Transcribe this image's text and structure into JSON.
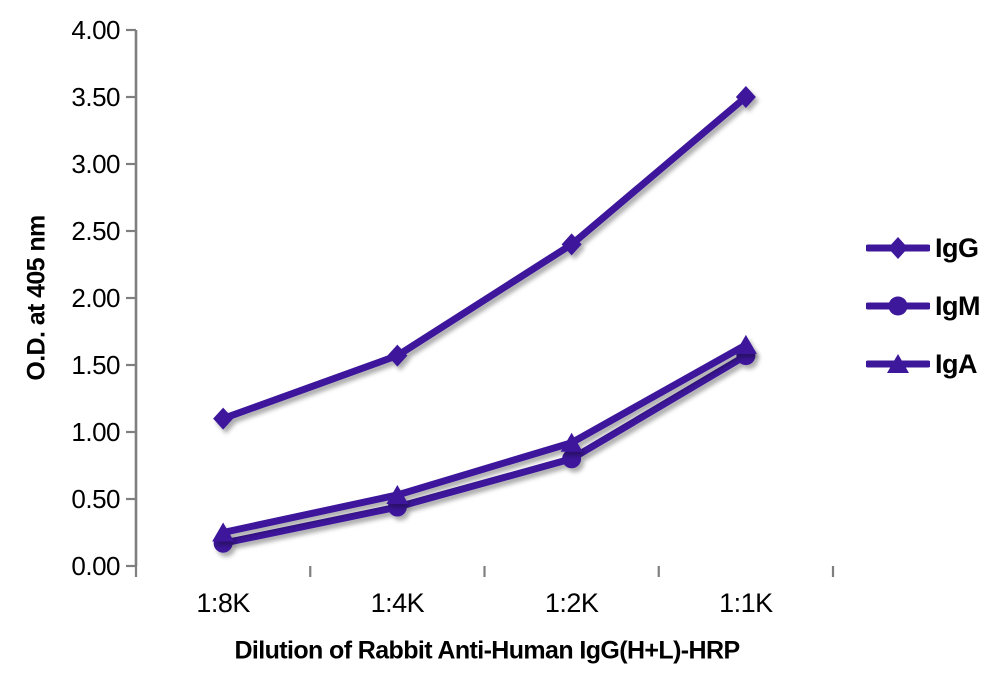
{
  "figure": {
    "background": "#ffffff"
  },
  "chart_data": {
    "type": "line",
    "title": "",
    "xlabel": "Dilution of Rabbit Anti-Human IgG(H+L)-HRP",
    "ylabel": "O.D. at 405 nm",
    "categories": [
      "1:8K",
      "1:4K",
      "1:2K",
      "1:1K"
    ],
    "series": [
      {
        "name": "IgG",
        "marker": "diamond",
        "values": [
          1.1,
          1.57,
          2.4,
          3.5
        ]
      },
      {
        "name": "IgM",
        "marker": "circle",
        "values": [
          0.17,
          0.44,
          0.8,
          1.57
        ]
      },
      {
        "name": "IgA",
        "marker": "triangle",
        "values": [
          0.25,
          0.53,
          0.92,
          1.65
        ]
      }
    ],
    "ylim": [
      0,
      4
    ],
    "ytick_step": 0.5,
    "ytick_labels": [
      "0.00",
      "0.50",
      "1.00",
      "1.50",
      "2.00",
      "2.50",
      "3.00",
      "3.50",
      "4.00"
    ],
    "grid": "horizontal",
    "legend_position": "right",
    "colors": {
      "series": "#3D189B",
      "grid": "#7F7F7F",
      "axis": "#7F7F7F",
      "text": "#000000"
    }
  }
}
